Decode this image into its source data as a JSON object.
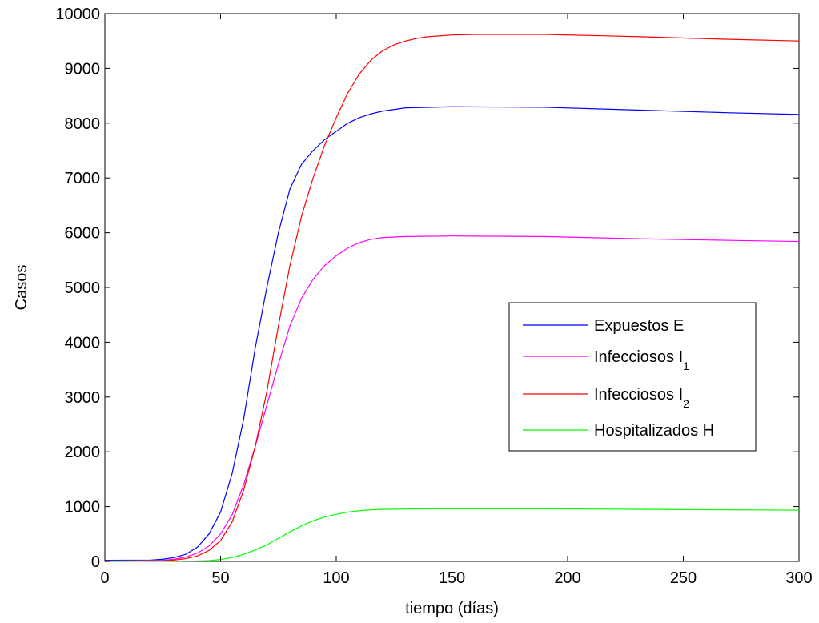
{
  "chart_data": {
    "type": "line",
    "title": "",
    "xlabel": "tiempo (días)",
    "ylabel": "Casos",
    "xlim": [
      0,
      300
    ],
    "ylim": [
      0,
      10000
    ],
    "xticks": [
      0,
      50,
      100,
      150,
      200,
      250,
      300
    ],
    "yticks": [
      0,
      1000,
      2000,
      3000,
      4000,
      5000,
      6000,
      7000,
      8000,
      9000,
      10000
    ],
    "grid": false,
    "legend_position": "center-right",
    "series": [
      {
        "name": "Expuestos E",
        "name_main": "Expuestos E",
        "name_sub": "",
        "color": "#0000ff",
        "x": [
          0,
          20,
          25,
          30,
          35,
          40,
          45,
          50,
          55,
          60,
          65,
          70,
          75,
          80,
          85,
          90,
          95,
          100,
          105,
          110,
          115,
          120,
          130,
          150,
          190,
          230,
          270,
          300
        ],
        "y": [
          20,
          25,
          40,
          70,
          130,
          260,
          500,
          900,
          1600,
          2600,
          3900,
          5000,
          6000,
          6800,
          7250,
          7500,
          7700,
          7850,
          8000,
          8100,
          8170,
          8220,
          8280,
          8300,
          8290,
          8240,
          8190,
          8160
        ]
      },
      {
        "name": "Infecciosos I1",
        "name_main": "Infecciosos I",
        "name_sub": "1",
        "color": "#ff00ff",
        "x": [
          0,
          25,
          30,
          35,
          40,
          45,
          50,
          55,
          60,
          65,
          70,
          75,
          80,
          85,
          90,
          95,
          100,
          105,
          110,
          115,
          120,
          130,
          150,
          190,
          230,
          270,
          300
        ],
        "y": [
          10,
          20,
          40,
          80,
          150,
          280,
          500,
          850,
          1400,
          2100,
          2850,
          3600,
          4300,
          4800,
          5150,
          5400,
          5580,
          5720,
          5820,
          5880,
          5910,
          5930,
          5940,
          5930,
          5890,
          5860,
          5840
        ]
      },
      {
        "name": "Infecciosos I2",
        "name_main": "Infecciosos I",
        "name_sub": "2",
        "color": "#ff0000",
        "x": [
          0,
          25,
          30,
          35,
          40,
          45,
          50,
          55,
          60,
          65,
          70,
          75,
          80,
          85,
          90,
          95,
          100,
          105,
          110,
          115,
          120,
          125,
          130,
          135,
          140,
          150,
          160,
          190,
          230,
          270,
          300
        ],
        "y": [
          5,
          10,
          25,
          50,
          100,
          200,
          380,
          720,
          1300,
          2100,
          3100,
          4300,
          5400,
          6300,
          7000,
          7600,
          8100,
          8550,
          8900,
          9150,
          9320,
          9430,
          9500,
          9550,
          9580,
          9610,
          9620,
          9620,
          9580,
          9530,
          9500
        ]
      },
      {
        "name": "Hospitalizados H",
        "name_main": "Hospitalizados H",
        "name_sub": "",
        "color": "#00ff00",
        "x": [
          0,
          30,
          40,
          45,
          50,
          55,
          60,
          65,
          70,
          75,
          80,
          85,
          90,
          95,
          100,
          105,
          110,
          115,
          120,
          130,
          140,
          190,
          230,
          270,
          300
        ],
        "y": [
          0,
          3,
          8,
          15,
          35,
          70,
          130,
          210,
          300,
          420,
          540,
          650,
          740,
          810,
          860,
          900,
          925,
          940,
          950,
          955,
          960,
          960,
          950,
          940,
          935
        ]
      }
    ]
  }
}
